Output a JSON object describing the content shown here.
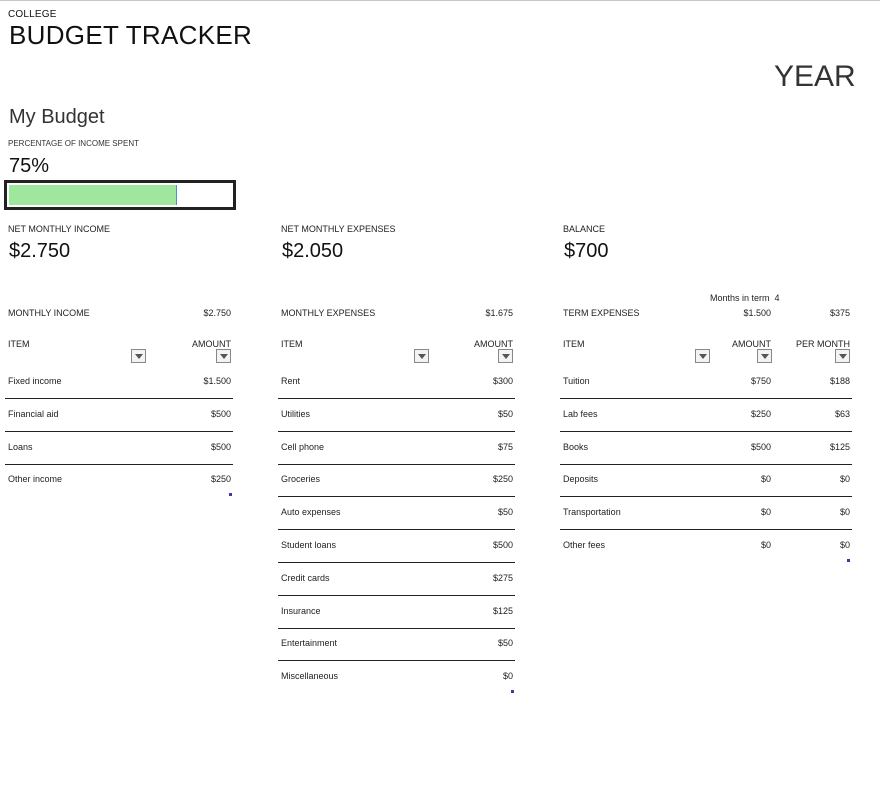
{
  "header": {
    "subtitle": "COLLEGE",
    "title": "BUDGET TRACKER",
    "year_label": "YEAR"
  },
  "budget": {
    "heading": "My Budget",
    "percent_label": "PERCENTAGE OF INCOME SPENT",
    "percent_value": "75%",
    "percent_fraction": 0.75
  },
  "summary": {
    "income": {
      "label": "NET MONTHLY INCOME",
      "value": "$2.750"
    },
    "expenses": {
      "label": "NET MONTHLY EXPENSES",
      "value": "$2.050"
    },
    "balance": {
      "label": "BALANCE",
      "value": "$700"
    }
  },
  "income_table": {
    "title": "MONTHLY INCOME",
    "total": "$2.750",
    "col_item": "ITEM",
    "col_amount": "AMOUNT",
    "rows": [
      {
        "item": "Fixed income",
        "amount": "$1.500"
      },
      {
        "item": "Financial aid",
        "amount": "$500"
      },
      {
        "item": "Loans",
        "amount": "$500"
      },
      {
        "item": "Other income",
        "amount": "$250"
      }
    ]
  },
  "expenses_table": {
    "title": "MONTHLY EXPENSES",
    "total": "$1.675",
    "col_item": "ITEM",
    "col_amount": "AMOUNT",
    "rows": [
      {
        "item": "Rent",
        "amount": "$300"
      },
      {
        "item": "Utilities",
        "amount": "$50"
      },
      {
        "item": "Cell phone",
        "amount": "$75"
      },
      {
        "item": "Groceries",
        "amount": "$250"
      },
      {
        "item": "Auto expenses",
        "amount": "$50"
      },
      {
        "item": "Student loans",
        "amount": "$500"
      },
      {
        "item": "Credit cards",
        "amount": "$275"
      },
      {
        "item": "Insurance",
        "amount": "$125"
      },
      {
        "item": "Entertainment",
        "amount": "$50"
      },
      {
        "item": "Miscellaneous",
        "amount": "$0"
      }
    ]
  },
  "term_table": {
    "months_label": "Months in term",
    "months_value": "4",
    "title": "TERM EXPENSES",
    "total": "$1.500",
    "total_per_month": "$375",
    "col_item": "ITEM",
    "col_amount": "AMOUNT",
    "col_per_month": "PER MONTH",
    "rows": [
      {
        "item": "Tuition",
        "amount": "$750",
        "per_month": "$188"
      },
      {
        "item": "Lab fees",
        "amount": "$250",
        "per_month": "$63"
      },
      {
        "item": "Books",
        "amount": "$500",
        "per_month": "$125"
      },
      {
        "item": "Deposits",
        "amount": "$0",
        "per_month": "$0"
      },
      {
        "item": "Transportation",
        "amount": "$0",
        "per_month": "$0"
      },
      {
        "item": "Other fees",
        "amount": "$0",
        "per_month": "$0"
      }
    ]
  }
}
